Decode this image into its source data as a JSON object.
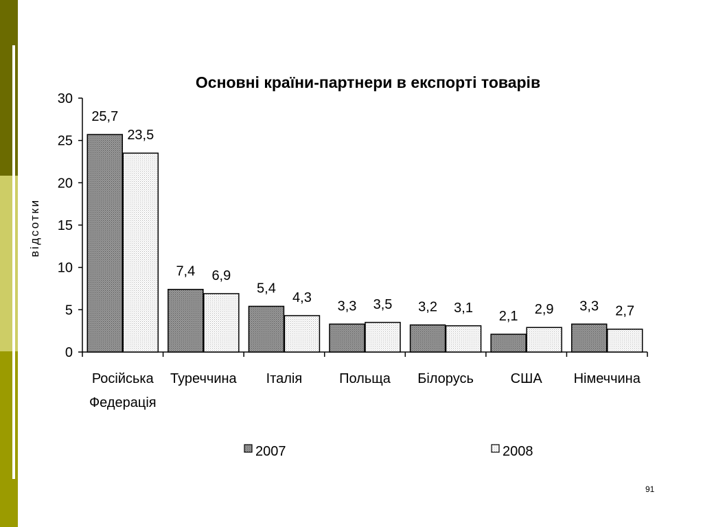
{
  "slide": {
    "page_number": "91",
    "accent_colors": [
      "#6b6b00",
      "#6b6b00",
      "#cdcd66",
      "#9b9b00"
    ]
  },
  "chart_data": {
    "type": "bar",
    "title": "Основні країни-партнери в експорті товарів",
    "xlabel": "",
    "ylabel": "відсотки",
    "ylim": [
      0,
      30
    ],
    "yticks": [
      0,
      5,
      10,
      15,
      20,
      25,
      30
    ],
    "categories": [
      [
        "Російська",
        "Федерація"
      ],
      [
        "Туреччина"
      ],
      [
        "Італія"
      ],
      [
        "Польща"
      ],
      [
        "Білорусь"
      ],
      [
        "США"
      ],
      [
        "Німеччина"
      ]
    ],
    "series": [
      {
        "name": "2007",
        "values": [
          25.7,
          7.4,
          5.4,
          3.3,
          3.2,
          2.1,
          3.3
        ],
        "labels": [
          "25,7",
          "7,4",
          "5,4",
          "3,3",
          "3,2",
          "2,1",
          "3,3"
        ],
        "color": "#888888"
      },
      {
        "name": "2008",
        "values": [
          23.5,
          6.9,
          4.3,
          3.5,
          3.1,
          2.9,
          2.7
        ],
        "labels": [
          "23,5",
          "6,9",
          "4,3",
          "3,5",
          "3,1",
          "2,9",
          "2,7"
        ],
        "color": "#f0f0f0"
      }
    ],
    "grid": false,
    "legend_position": "bottom"
  }
}
